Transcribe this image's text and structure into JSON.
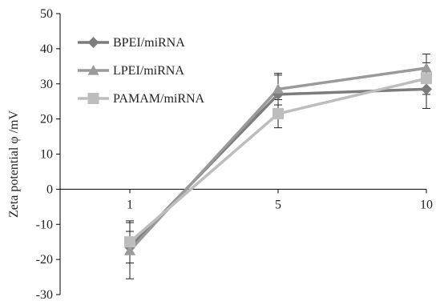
{
  "chart_data": {
    "type": "line",
    "title": "",
    "xlabel": "",
    "ylabel": "Zeta potential  φ /mV",
    "categories": [
      "1",
      "5",
      "10"
    ],
    "ylim": [
      -30,
      50
    ],
    "yticks": [
      50,
      40,
      30,
      20,
      10,
      0,
      -10,
      -20,
      -30
    ],
    "ytick_labels": [
      "50",
      "40",
      "30",
      "20",
      "10",
      "0",
      "-10",
      "-20",
      "-30"
    ],
    "grid": false,
    "legend_position": "top-left",
    "series": [
      {
        "name": "BPEI/miRNA",
        "marker": "diamond",
        "color": "#7c7c7c",
        "values": [
          -16.5,
          27.0,
          28.5
        ],
        "error": [
          4.5,
          5.5,
          5.5
        ]
      },
      {
        "name": "LPEI/miRNA",
        "marker": "triangle",
        "color": "#9a9a9a",
        "values": [
          -17.5,
          28.5,
          34.5
        ],
        "error": [
          8.0,
          4.5,
          4.0
        ]
      },
      {
        "name": "PAMAM/miRNA",
        "marker": "square",
        "color": "#bdbdbd",
        "values": [
          -15.0,
          21.5,
          31.5
        ],
        "error": [
          6.0,
          4.0,
          4.5
        ]
      }
    ]
  }
}
